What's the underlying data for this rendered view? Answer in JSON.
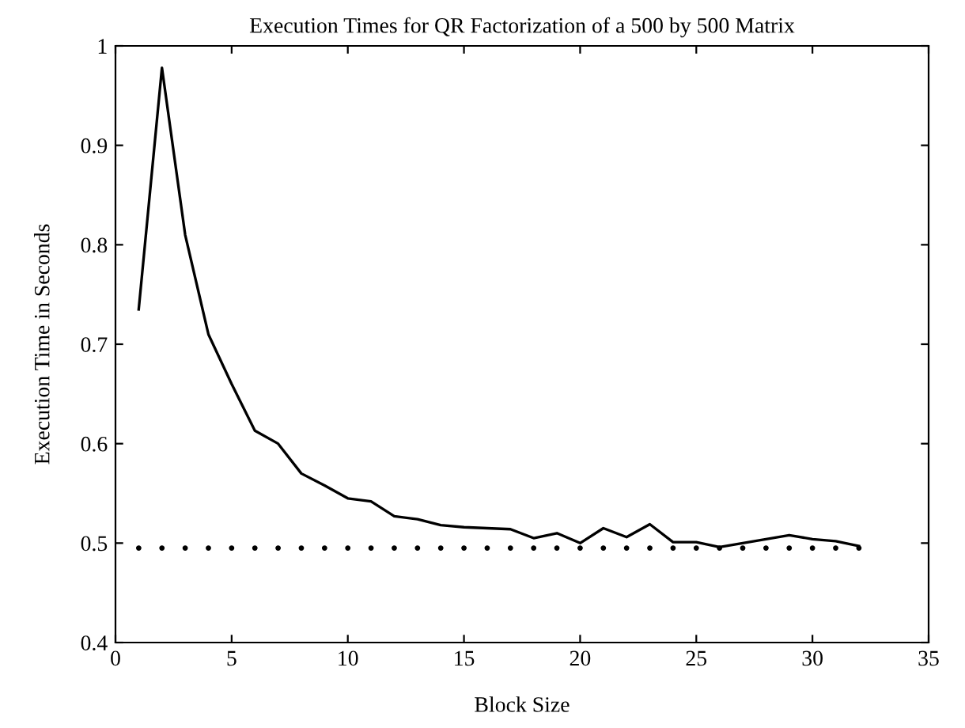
{
  "chart_data": {
    "type": "line",
    "title": "Execution Times for QR Factorization of a 500 by 500 Matrix",
    "xlabel": "Block Size",
    "ylabel": "Execution Time in Seconds",
    "x": [
      1,
      2,
      3,
      4,
      5,
      6,
      7,
      8,
      9,
      10,
      11,
      12,
      13,
      14,
      15,
      16,
      17,
      18,
      19,
      20,
      21,
      22,
      23,
      24,
      25,
      26,
      27,
      28,
      29,
      30,
      31,
      32
    ],
    "series": [
      {
        "color": "#000000",
        "line_style": "solid",
        "values": [
          0.735,
          0.978,
          0.81,
          0.71,
          0.66,
          0.613,
          0.6,
          0.57,
          0.558,
          0.545,
          0.542,
          0.527,
          0.524,
          0.518,
          0.516,
          0.515,
          0.514,
          0.505,
          0.51,
          0.5,
          0.515,
          0.506,
          0.519,
          0.501,
          0.501,
          0.496,
          0.5,
          0.504,
          0.508,
          0.504,
          0.502,
          0.497
        ]
      },
      {
        "type": "scatter",
        "color": "#000000",
        "marker": "circle",
        "values": [
          0.495,
          0.495,
          0.495,
          0.495,
          0.495,
          0.495,
          0.495,
          0.495,
          0.495,
          0.495,
          0.495,
          0.495,
          0.495,
          0.495,
          0.495,
          0.495,
          0.495,
          0.495,
          0.495,
          0.495,
          0.495,
          0.495,
          0.495,
          0.495,
          0.495,
          0.495,
          0.495,
          0.495,
          0.495,
          0.495,
          0.495,
          0.495
        ]
      }
    ],
    "xlim": [
      0,
      35
    ],
    "xticks": [
      0,
      5,
      10,
      15,
      20,
      25,
      30,
      35
    ],
    "ylim": [
      0.4,
      1
    ],
    "yticks": [
      0.4,
      0.5,
      0.6,
      0.7,
      0.8,
      0.9,
      1
    ],
    "grid": false
  }
}
